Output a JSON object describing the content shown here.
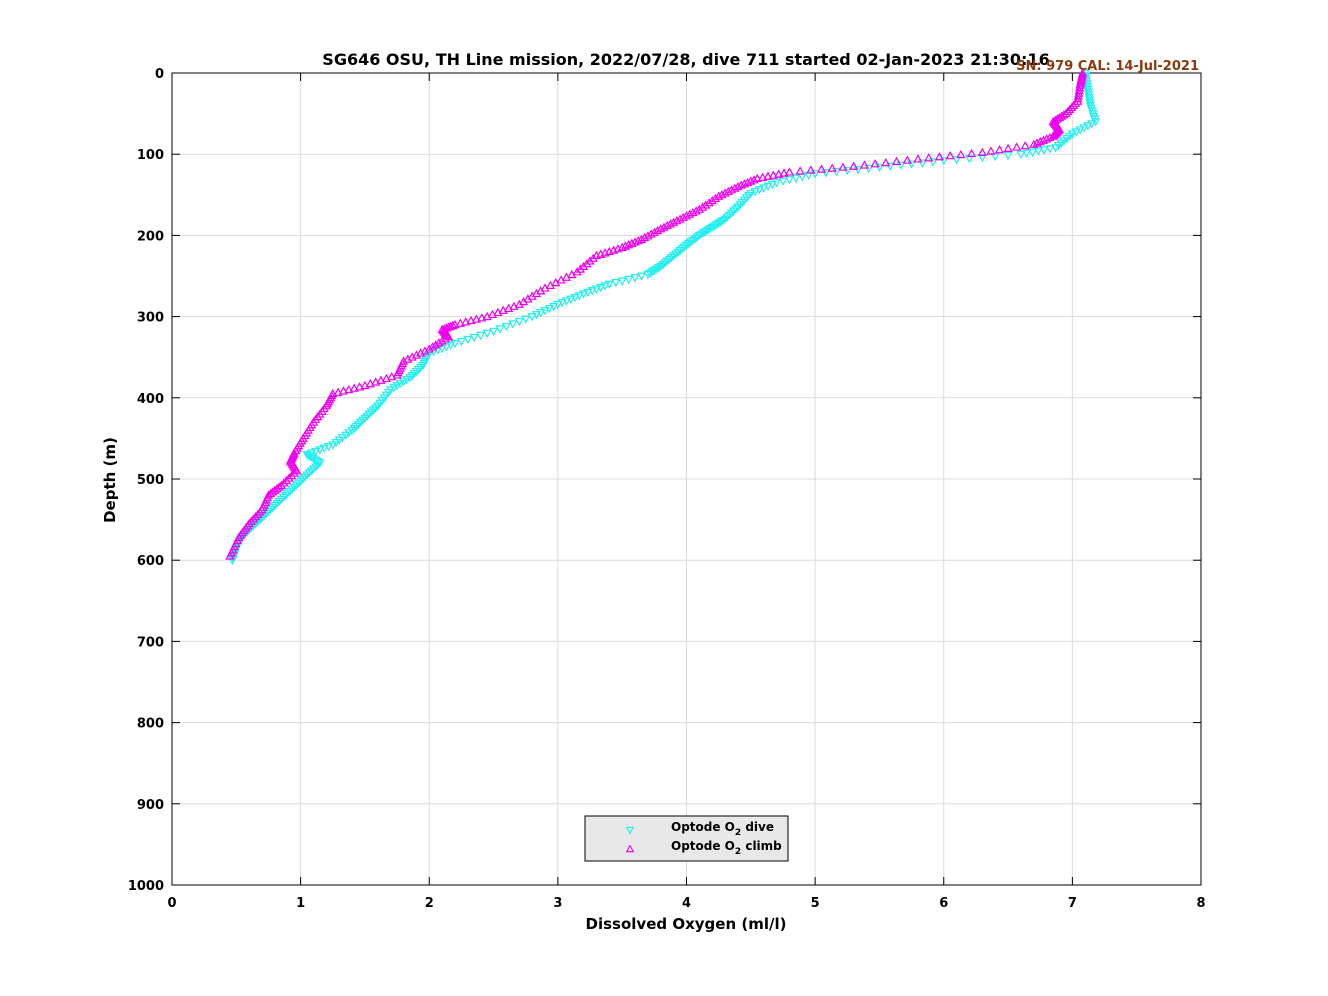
{
  "chart_data": {
    "type": "scatter",
    "title": "SG646 OSU, TH Line mission, 2022/07/28, dive 711 started 02-Jan-2023 21:30:16",
    "annotation": "SN: 979  CAL: 14-Jul-2021",
    "xlabel": "Dissolved Oxygen (ml/l)",
    "ylabel": "Depth (m)",
    "xlim": [
      0,
      8
    ],
    "ylim": [
      0,
      1000
    ],
    "y_reversed": true,
    "grid": true,
    "legend_position": "bottom-center",
    "x_ticks": [
      "0",
      "1",
      "2",
      "3",
      "4",
      "5",
      "6",
      "7",
      "8"
    ],
    "y_ticks": [
      "0",
      "100",
      "200",
      "300",
      "400",
      "500",
      "600",
      "700",
      "800",
      "900",
      "1000"
    ],
    "series": [
      {
        "label_prefix": "Optode O",
        "label_sub": "2",
        "label_suffix": " dive",
        "marker": "triangle-down",
        "color": "#22eeee",
        "x": [
          7.1,
          7.12,
          7.14,
          7.18,
          7.0,
          6.87,
          6.6,
          6.0,
          5.5,
          5.0,
          4.7,
          4.5,
          4.4,
          4.3,
          4.2,
          4.1,
          4.0,
          3.9,
          3.8,
          3.7,
          3.4,
          3.2,
          3.0,
          2.8,
          2.5,
          2.2,
          2.0,
          1.95,
          1.85,
          1.7,
          1.6,
          1.5,
          1.4,
          1.25,
          1.05,
          1.15,
          1.05,
          0.95,
          0.85,
          0.75,
          0.65,
          0.55,
          0.5,
          0.47
        ],
        "y": [
          0,
          20,
          40,
          60,
          75,
          92,
          100,
          108,
          116,
          124,
          135,
          148,
          165,
          180,
          190,
          200,
          212,
          225,
          238,
          248,
          260,
          272,
          285,
          300,
          318,
          333,
          345,
          360,
          375,
          390,
          410,
          425,
          440,
          458,
          470,
          480,
          495,
          510,
          525,
          540,
          555,
          570,
          585,
          600
        ]
      },
      {
        "label_prefix": "Optode O",
        "label_sub": "2",
        "label_suffix": " climb",
        "marker": "triangle-up",
        "color": "#ee00ee",
        "x": [
          7.08,
          7.06,
          7.04,
          6.95,
          6.85,
          6.9,
          6.85,
          6.7,
          6.3,
          5.8,
          5.3,
          4.8,
          4.55,
          4.4,
          4.25,
          4.1,
          3.95,
          3.8,
          3.65,
          3.5,
          3.3,
          3.15,
          2.9,
          2.7,
          2.45,
          2.2,
          2.1,
          2.15,
          2.0,
          1.8,
          1.75,
          1.5,
          1.25,
          1.2,
          1.1,
          1.02,
          0.95,
          0.92,
          0.97,
          0.85,
          0.75,
          0.7,
          0.6,
          0.52,
          0.45
        ],
        "y": [
          0,
          15,
          35,
          50,
          60,
          70,
          78,
          88,
          98,
          106,
          115,
          122,
          130,
          140,
          152,
          168,
          180,
          192,
          205,
          215,
          225,
          245,
          265,
          285,
          300,
          310,
          316,
          325,
          340,
          355,
          372,
          385,
          395,
          410,
          430,
          450,
          468,
          478,
          490,
          508,
          520,
          538,
          555,
          572,
          595
        ]
      }
    ]
  }
}
